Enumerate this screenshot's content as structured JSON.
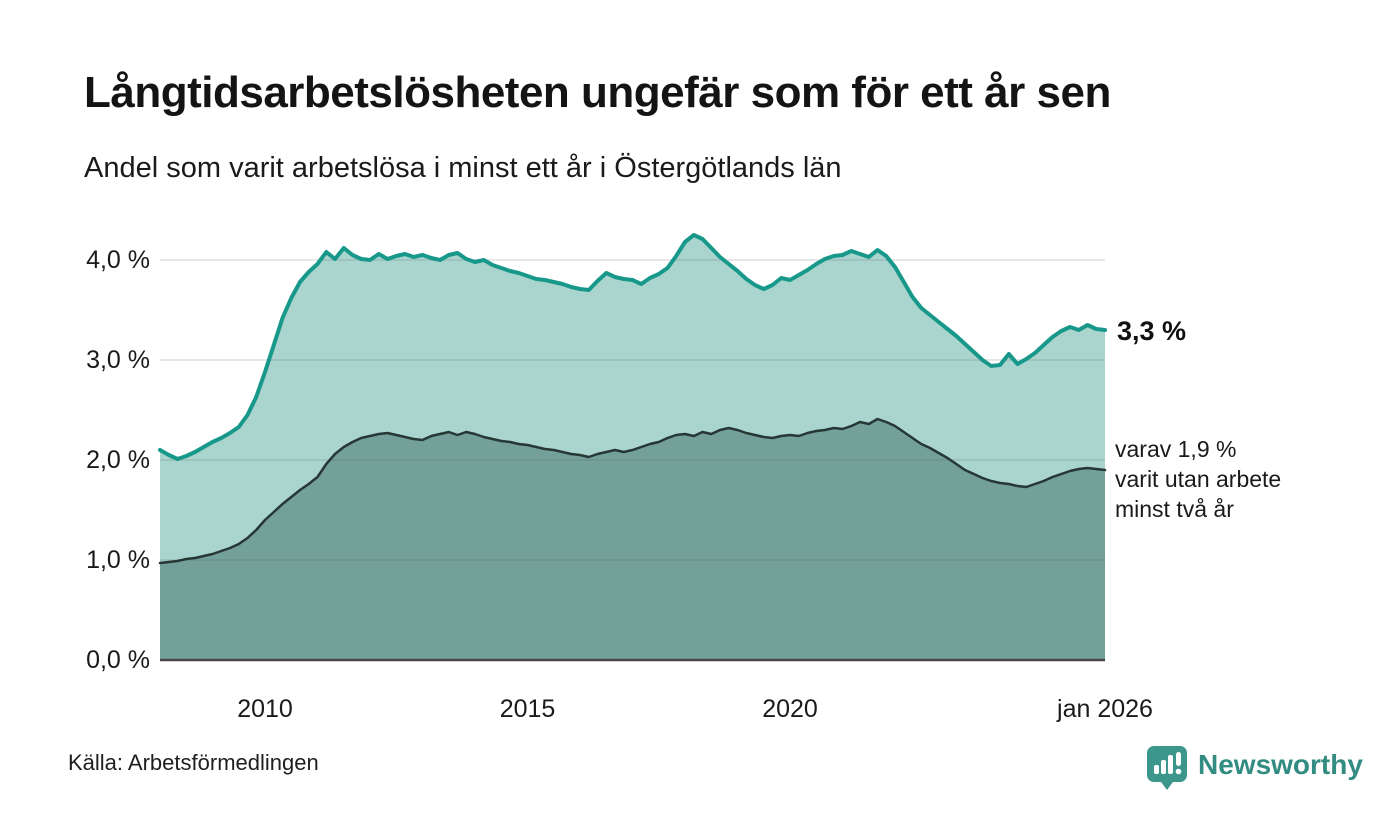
{
  "header": {
    "title": "Långtidsarbetslösheten ungefär som för ett år sen",
    "subtitle": "Andel som varit arbetslösa i minst ett år i Östergötlands län"
  },
  "chart_data": {
    "type": "area",
    "title": "Långtidsarbetslösheten ungefär som för ett år sen",
    "subtitle": "Andel som varit arbetslösa i minst ett år i Östergötlands län",
    "unit": "%",
    "grid": true,
    "x_range": [
      2008,
      2026
    ],
    "x_start_year": 2008,
    "x_step_months": 2,
    "ylim": [
      0,
      4.25
    ],
    "ytick_values": [
      0,
      1,
      2,
      3,
      4
    ],
    "ytick_labels": [
      "0,0 %",
      "1,0 %",
      "2,0 %",
      "3,0 %",
      "4,0 %"
    ],
    "xticks": [
      {
        "label": "2010",
        "year": 2010
      },
      {
        "label": "2015",
        "year": 2015
      },
      {
        "label": "2020",
        "year": 2020
      },
      {
        "label": "jan 2026",
        "year": 2026
      }
    ],
    "series": [
      {
        "name": "Arbetslösa minst ett år",
        "line_color": "#17988a",
        "fill_color": "#aad5ce",
        "line_width": 4,
        "end_value_label": "3,3 %",
        "values": [
          2.1,
          2.05,
          2.01,
          2.04,
          2.08,
          2.13,
          2.18,
          2.22,
          2.27,
          2.33,
          2.45,
          2.63,
          2.88,
          3.15,
          3.42,
          3.62,
          3.78,
          3.88,
          3.96,
          4.08,
          4.01,
          4.12,
          4.05,
          4.01,
          4.0,
          4.06,
          4.01,
          4.04,
          4.06,
          4.03,
          4.05,
          4.02,
          4.0,
          4.05,
          4.07,
          4.01,
          3.98,
          4.0,
          3.95,
          3.92,
          3.89,
          3.87,
          3.84,
          3.81,
          3.8,
          3.78,
          3.76,
          3.73,
          3.71,
          3.7,
          3.79,
          3.87,
          3.83,
          3.81,
          3.8,
          3.76,
          3.82,
          3.86,
          3.92,
          4.04,
          4.18,
          4.25,
          4.21,
          4.12,
          4.03,
          3.96,
          3.89,
          3.81,
          3.75,
          3.71,
          3.75,
          3.82,
          3.8,
          3.85,
          3.9,
          3.96,
          4.01,
          4.04,
          4.05,
          4.09,
          4.06,
          4.03,
          4.1,
          4.04,
          3.93,
          3.78,
          3.63,
          3.52,
          3.45,
          3.38,
          3.31,
          3.24,
          3.16,
          3.08,
          3.0,
          2.94,
          2.95,
          3.06,
          2.96,
          3.01,
          3.07,
          3.15,
          3.23,
          3.29,
          3.33,
          3.3,
          3.35,
          3.31,
          3.3
        ]
      },
      {
        "name": "varav varit utan arbete minst två år",
        "line_color": "#263734",
        "fill_color": "#74a09a",
        "line_width": 2.5,
        "end_value_label": "varav 1,9 %",
        "values": [
          0.97,
          0.98,
          0.99,
          1.01,
          1.02,
          1.04,
          1.06,
          1.09,
          1.12,
          1.16,
          1.22,
          1.3,
          1.4,
          1.48,
          1.56,
          1.63,
          1.7,
          1.76,
          1.83,
          1.96,
          2.06,
          2.13,
          2.18,
          2.22,
          2.24,
          2.26,
          2.27,
          2.25,
          2.23,
          2.21,
          2.2,
          2.24,
          2.26,
          2.28,
          2.25,
          2.28,
          2.26,
          2.23,
          2.21,
          2.19,
          2.18,
          2.16,
          2.15,
          2.13,
          2.11,
          2.1,
          2.08,
          2.06,
          2.05,
          2.03,
          2.06,
          2.08,
          2.1,
          2.08,
          2.1,
          2.13,
          2.16,
          2.18,
          2.22,
          2.25,
          2.26,
          2.24,
          2.28,
          2.26,
          2.3,
          2.32,
          2.3,
          2.27,
          2.25,
          2.23,
          2.22,
          2.24,
          2.25,
          2.24,
          2.27,
          2.29,
          2.3,
          2.32,
          2.31,
          2.34,
          2.38,
          2.36,
          2.41,
          2.38,
          2.34,
          2.28,
          2.22,
          2.16,
          2.12,
          2.07,
          2.02,
          1.96,
          1.9,
          1.86,
          1.82,
          1.79,
          1.77,
          1.76,
          1.74,
          1.73,
          1.76,
          1.79,
          1.83,
          1.86,
          1.89,
          1.91,
          1.92,
          1.91,
          1.9
        ]
      }
    ],
    "legend_position": "none"
  },
  "annotations": {
    "top_value": "3,3 %",
    "bottom_lines": [
      "varav 1,9 %",
      "varit utan arbete",
      "minst två år"
    ]
  },
  "footer": {
    "source": "Källa: Arbetsförmedlingen",
    "brand": "Newsworthy"
  },
  "colors": {
    "accent_teal": "#17988a",
    "light_fill": "#aad5ce",
    "dark_fill": "#74a09a",
    "dark_line": "#263734",
    "gridline": "rgba(84,84,100,0.14)",
    "axis_line": "#474747",
    "brand_teal": "#3d968b",
    "brand_text": "#328c82"
  }
}
